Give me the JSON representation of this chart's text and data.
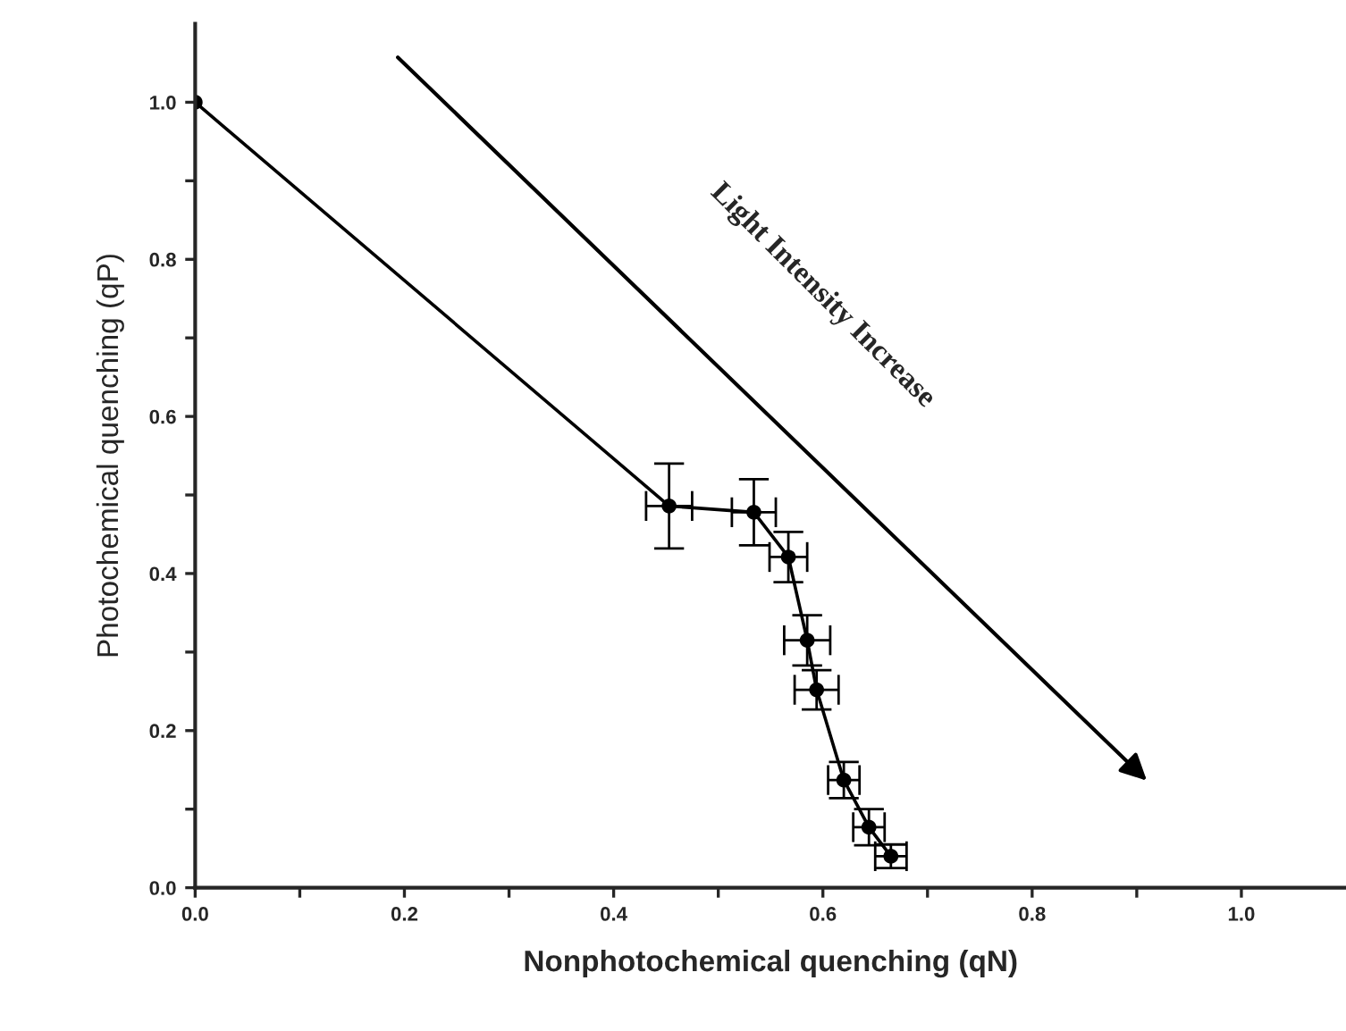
{
  "chart_data": {
    "type": "line",
    "xlabel": "Nonphotochemical quenching (qN)",
    "ylabel": "Photochemical quenching (qP)",
    "annotations": [
      "Light Intensity Increase"
    ],
    "x": [
      0.0,
      0.453,
      0.534,
      0.567,
      0.585,
      0.594,
      0.62,
      0.644,
      0.665
    ],
    "series": [
      {
        "color": "#000000",
        "values": [
          1.0,
          0.486,
          0.478,
          0.421,
          0.315,
          0.252,
          0.137,
          0.077,
          0.04
        ],
        "errors": [
          null,
          0.054,
          0.042,
          0.032,
          0.032,
          0.025,
          0.023,
          0.023,
          0.015
        ],
        "xerrors": [
          null,
          0.022,
          0.021,
          0.018,
          0.022,
          0.021,
          0.015,
          0.015,
          0.015
        ]
      }
    ],
    "marker": "circle",
    "line_style": "solid",
    "grid": false,
    "legend": false,
    "xlim": [
      0,
      1.1
    ],
    "ylim": [
      0,
      1.1
    ],
    "xticks": [
      {
        "value": 0,
        "label": "0.0"
      },
      {
        "value": 0.1,
        "label": null
      },
      {
        "value": 0.2,
        "label": "0.2"
      },
      {
        "value": 0.3,
        "label": null
      },
      {
        "value": 0.4,
        "label": "0.4"
      },
      {
        "value": 0.5,
        "label": null
      },
      {
        "value": 0.6,
        "label": "0.6"
      },
      {
        "value": 0.7,
        "label": null
      },
      {
        "value": 0.8,
        "label": "0.8"
      },
      {
        "value": 0.9,
        "label": null
      },
      {
        "value": 1.0,
        "label": "1.0"
      }
    ],
    "yticks": [
      {
        "value": 0,
        "label": "0.0"
      },
      {
        "value": 0.1,
        "label": null
      },
      {
        "value": 0.2,
        "label": "0.2"
      },
      {
        "value": 0.3,
        "label": null
      },
      {
        "value": 0.4,
        "label": "0.4"
      },
      {
        "value": 0.5,
        "label": null
      },
      {
        "value": 0.6,
        "label": "0.6"
      },
      {
        "value": 0.7,
        "label": null
      },
      {
        "value": 0.8,
        "label": "0.8"
      },
      {
        "value": 0.9,
        "label": null
      },
      {
        "value": 1.0,
        "label": "1.0"
      }
    ]
  }
}
